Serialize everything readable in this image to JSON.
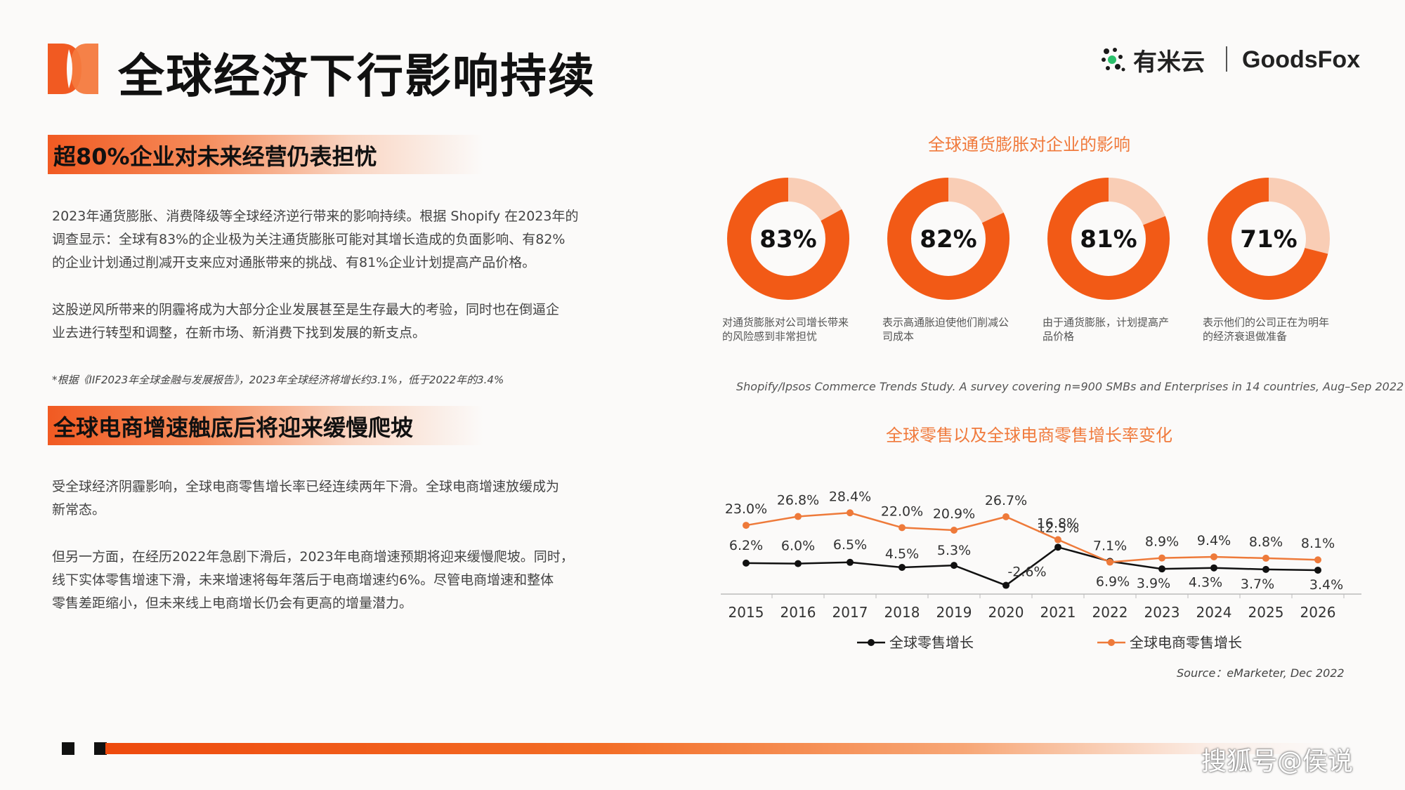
{
  "header": {
    "title": "全球经济下行影响持续",
    "brand_youmi": "有米云",
    "brand_goodsfox": "GoodsFox"
  },
  "section1": {
    "title": "超80%企业对未来经营仍表担忧",
    "para1_lines": [
      "2023年通货膨胀、消费降级等全球经济逆行带来的影响持续。根据 Shopify 在2023年的",
      "调查显示：全球有83%的企业极为关注通货膨胀可能对其增长造成的负面影响、有82%",
      "的企业计划通过削减开支来应对通胀带来的挑战、有81%企业计划提高产品价格。"
    ],
    "para2_lines": [
      "这股逆风所带来的阴霾将成为大部分企业发展甚至是生存最大的考验，同时也在倒逼企",
      "业去进行转型和调整，在新市场、新消费下找到发展的新支点。"
    ],
    "note": "*根据《IIF2023年全球金融与发展报告》，2023年全球经济将增长约3.1%，低于2022年的3.4%"
  },
  "section2": {
    "title": "全球电商增速触底后将迎来缓慢爬坡",
    "para1_lines": [
      "受全球经济阴霾影响，全球电商零售增长率已经连续两年下滑。全球电商增速放缓成为",
      "新常态。"
    ],
    "para2_lines": [
      "但另一方面，在经历2022年急剧下滑后，2023年电商增速预期将迎来缓慢爬坡。同时，",
      "线下实体零售增速下滑，未来增速将每年落后于电商增速约6%。尽管电商增速和整体",
      "零售差距缩小，但未来线上电商增长仍会有更高的增量潜力。"
    ]
  },
  "chart_data": [
    {
      "type": "pie",
      "title": "全球通货膨胀对企业的影响",
      "items": [
        {
          "value": 83,
          "label": "83%",
          "caption_lines": [
            "对通货膨胀对公司增长带来",
            "的风险感到非常担忧"
          ]
        },
        {
          "value": 82,
          "label": "82%",
          "caption_lines": [
            "表示高通胀迫使他们削减公",
            "司成本"
          ]
        },
        {
          "value": 81,
          "label": "81%",
          "caption_lines": [
            "由于通货膨胀，计划提高产",
            "品价格"
          ]
        },
        {
          "value": 71,
          "label": "71%",
          "caption_lines": [
            "表示他们的公司正在为明年",
            "的经济衰退做准备"
          ]
        }
      ],
      "colors": {
        "main": "#f25a16",
        "rest": "#f9cdb5"
      },
      "source": "Shopify/Ipsos Commerce Trends Study. A survey covering n=900 SMBs and Enterprises in 14 countries, Aug–Sep 2022"
    },
    {
      "type": "line",
      "title": "全球零售以及全球电商零售增长率变化",
      "x": [
        "2015",
        "2016",
        "2017",
        "2018",
        "2019",
        "2020",
        "2021",
        "2022",
        "2023",
        "2024",
        "2025",
        "2026"
      ],
      "series": [
        {
          "name": "全球零售增长",
          "color": "#111111",
          "values": [
            6.2,
            6.0,
            6.5,
            4.5,
            5.3,
            -2.6,
            12.5,
            6.9,
            3.9,
            4.3,
            3.7,
            3.4
          ],
          "labels": [
            "6.2%",
            "6.0%",
            "6.5%",
            "4.5%",
            "5.3%",
            "-2.6%",
            "12.5%",
            "6.9%",
            "3.9%",
            "4.3%",
            "3.7%",
            "3.4%"
          ]
        },
        {
          "name": "全球电商零售增长",
          "color": "#ee7a3a",
          "values": [
            23.0,
            26.8,
            28.4,
            22.0,
            20.9,
            26.7,
            16.8,
            7.1,
            8.9,
            9.4,
            8.8,
            8.1
          ],
          "labels": [
            "23.0%",
            "26.8%",
            "28.4%",
            "22.0%",
            "20.9%",
            "26.7%",
            "16.8%",
            "7.1%",
            "8.9%",
            "9.4%",
            "8.8%",
            "8.1%"
          ]
        }
      ],
      "legend": "bottom",
      "source": "Source：eMarketer, Dec 2022"
    }
  ],
  "footer": {
    "watermark": "搜狐号@侯说"
  }
}
